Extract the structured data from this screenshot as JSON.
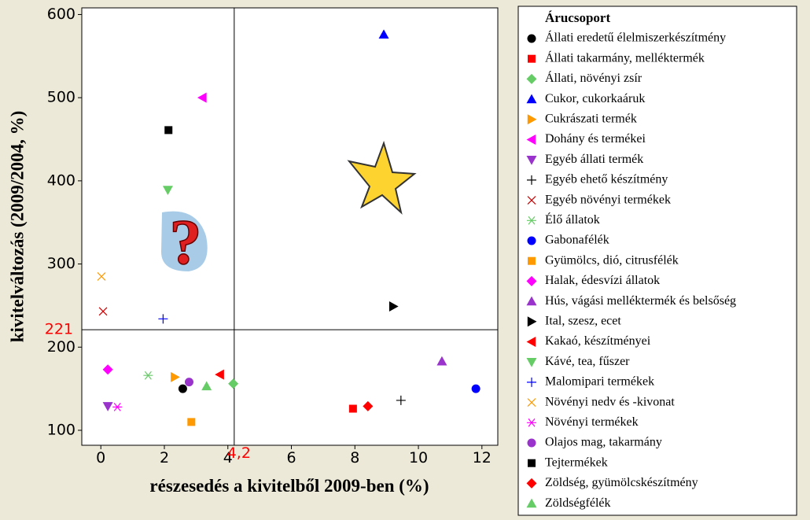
{
  "chart_data": {
    "type": "scatter",
    "xlabel": "részesedés a kivitelből 2009-ben (%)",
    "ylabel": "kivitelváltozás (2009/2004, %)",
    "legend_title": "Árucsoport",
    "xlim": [
      -0.6,
      12.5
    ],
    "ylim": [
      82,
      608
    ],
    "xticks": [
      0,
      2,
      4,
      6,
      8,
      10,
      12
    ],
    "yticks": [
      100,
      200,
      300,
      400,
      500,
      600
    ],
    "reference_lines": [
      {
        "axis": "y",
        "value": 221
      },
      {
        "axis": "x",
        "value": 4.2,
        "label": "4,2"
      }
    ],
    "series": [
      {
        "name": "Állati eredetű élelmiszerkészítmény",
        "color": "#000000",
        "marker": "circle",
        "x": [
          2.58
        ],
        "values": [
          150
        ]
      },
      {
        "name": "Állati takarmány, melléktermék",
        "color": "#ff0000",
        "marker": "square",
        "x": [
          7.94
        ],
        "values": [
          126
        ]
      },
      {
        "name": "Állati, növényi zsír",
        "color": "#66cc66",
        "marker": "diamond",
        "x": [
          4.17
        ],
        "values": [
          156
        ]
      },
      {
        "name": "Cukor, cukorkaáruk",
        "color": "#0000ff",
        "marker": "triangle-up",
        "x": [
          8.91
        ],
        "values": [
          576
        ]
      },
      {
        "name": "Cukrászati termék",
        "color": "#ff9900",
        "marker": "triangle-right",
        "x": [
          2.33
        ],
        "values": [
          164
        ]
      },
      {
        "name": "Dohány és termékei",
        "color": "#ff00ff",
        "marker": "triangle-left",
        "x": [
          3.2
        ],
        "values": [
          500
        ]
      },
      {
        "name": "Egyéb állati termék",
        "color": "#9933cc",
        "marker": "triangle-down",
        "x": [
          0.22
        ],
        "values": [
          129
        ]
      },
      {
        "name": "Egyéb ehető készítmény",
        "color": "#000000",
        "marker": "plus",
        "x": [
          9.45
        ],
        "values": [
          136
        ]
      },
      {
        "name": "Egyéb növényi termékek",
        "color": "#cc0000",
        "marker": "x",
        "x": [
          0.07
        ],
        "values": [
          243
        ]
      },
      {
        "name": "Élő állatok",
        "color": "#66cc66",
        "marker": "asterisk",
        "x": [
          1.49
        ],
        "values": [
          166
        ]
      },
      {
        "name": "Gabonafélék",
        "color": "#0000ff",
        "marker": "circle",
        "x": [
          11.81
        ],
        "values": [
          150
        ]
      },
      {
        "name": "Gyümölcs, dió, citrusfélék",
        "color": "#ff9900",
        "marker": "square",
        "x": [
          2.85
        ],
        "values": [
          110
        ]
      },
      {
        "name": "Halak, édesvízi állatok",
        "color": "#ff00ff",
        "marker": "diamond",
        "x": [
          0.22
        ],
        "values": [
          173
        ]
      },
      {
        "name": "Hús, vágási melléktermék és belsőség",
        "color": "#9933cc",
        "marker": "triangle-up",
        "x": [
          10.74
        ],
        "values": [
          183
        ]
      },
      {
        "name": "Ital, szesz, ecet",
        "color": "#000000",
        "marker": "triangle-right",
        "x": [
          9.21
        ],
        "values": [
          249
        ]
      },
      {
        "name": "Kakaó, készítményei",
        "color": "#ff0000",
        "marker": "triangle-left",
        "x": [
          3.75
        ],
        "values": [
          167
        ]
      },
      {
        "name": "Kávé, tea, fűszer",
        "color": "#66cc66",
        "marker": "triangle-down",
        "x": [
          2.11
        ],
        "values": [
          389
        ]
      },
      {
        "name": "Malomipari termékek",
        "color": "#0000ff",
        "marker": "plus",
        "x": [
          1.96
        ],
        "values": [
          234
        ]
      },
      {
        "name": "Növényi nedv és -kivonat",
        "color": "#ff9900",
        "marker": "x",
        "x": [
          0.02
        ],
        "values": [
          285
        ]
      },
      {
        "name": "Növényi termékek",
        "color": "#ff00ff",
        "marker": "asterisk",
        "x": [
          0.52
        ],
        "values": [
          128
        ]
      },
      {
        "name": "Olajos mag, takarmány",
        "color": "#9933cc",
        "marker": "circle",
        "x": [
          2.78
        ],
        "values": [
          158
        ]
      },
      {
        "name": "Tejtermékek",
        "color": "#000000",
        "marker": "square",
        "x": [
          2.13
        ],
        "values": [
          461
        ]
      },
      {
        "name": "Zöldség, gyümölcskészítmény",
        "color": "#ff0000",
        "marker": "diamond",
        "x": [
          8.41
        ],
        "values": [
          129
        ]
      },
      {
        "name": "Zöldségfélék",
        "color": "#66cc66",
        "marker": "triangle-up",
        "x": [
          3.33
        ],
        "values": [
          153
        ]
      }
    ]
  }
}
